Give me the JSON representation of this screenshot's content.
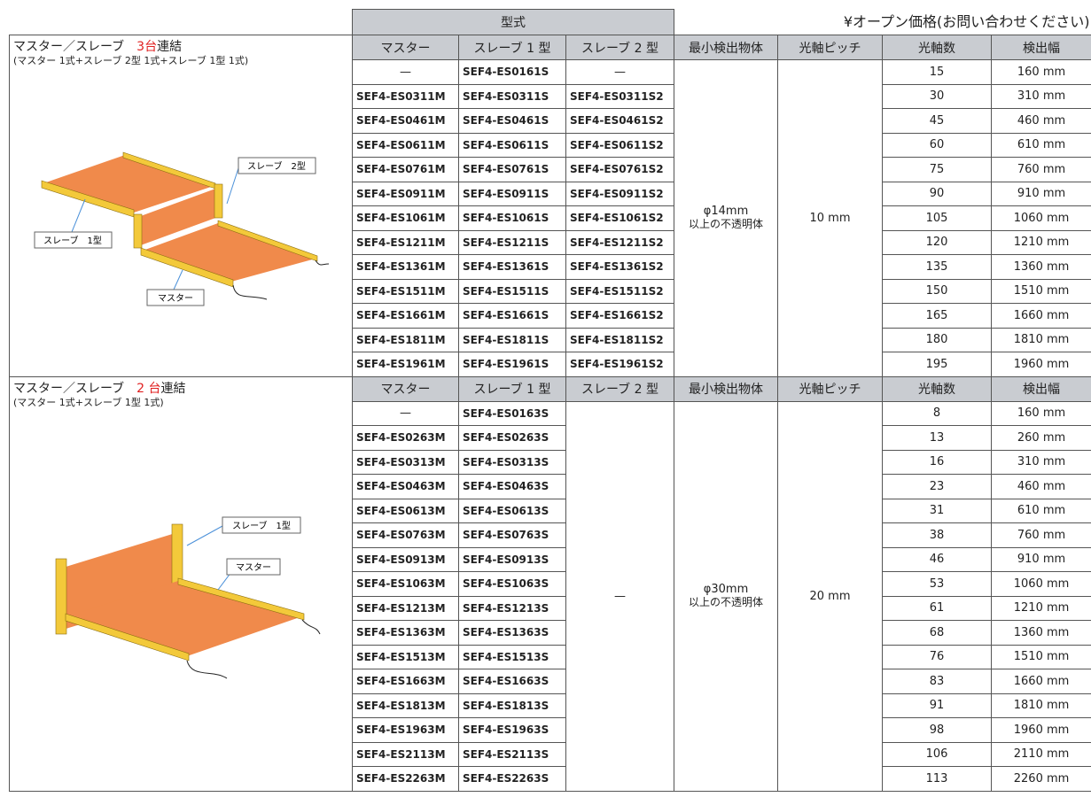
{
  "price_note": "¥オープン価格(お問い合わせください)",
  "model_header": "型式",
  "columns": [
    "マスター",
    "スレーブ 1 型",
    "スレーブ 2 型",
    "最小検出物体",
    "光軸ピッチ",
    "光軸数",
    "検出幅"
  ],
  "sections": [
    {
      "title_before": "マスター／スレーブ　",
      "title_count": "3台",
      "title_after": "連結",
      "subtitle": "(マスター 1式+スレーブ 2型 1式+スレーブ 1型 1式)",
      "labels": [
        "スレーブ　2型",
        "スレーブ　1型",
        "マスター"
      ],
      "min_object": [
        "φ14mm",
        "以上の不透明体"
      ],
      "pitch": "10 mm",
      "rows": [
        [
          "—",
          "SEF4-ES0161S",
          "—",
          15,
          "160 mm"
        ],
        [
          "SEF4-ES0311M",
          "SEF4-ES0311S",
          "SEF4-ES0311S2",
          30,
          "310 mm"
        ],
        [
          "SEF4-ES0461M",
          "SEF4-ES0461S",
          "SEF4-ES0461S2",
          45,
          "460 mm"
        ],
        [
          "SEF4-ES0611M",
          "SEF4-ES0611S",
          "SEF4-ES0611S2",
          60,
          "610 mm"
        ],
        [
          "SEF4-ES0761M",
          "SEF4-ES0761S",
          "SEF4-ES0761S2",
          75,
          "760 mm"
        ],
        [
          "SEF4-ES0911M",
          "SEF4-ES0911S",
          "SEF4-ES0911S2",
          90,
          "910 mm"
        ],
        [
          "SEF4-ES1061M",
          "SEF4-ES1061S",
          "SEF4-ES1061S2",
          105,
          "1060 mm"
        ],
        [
          "SEF4-ES1211M",
          "SEF4-ES1211S",
          "SEF4-ES1211S2",
          120,
          "1210 mm"
        ],
        [
          "SEF4-ES1361M",
          "SEF4-ES1361S",
          "SEF4-ES1361S2",
          135,
          "1360 mm"
        ],
        [
          "SEF4-ES1511M",
          "SEF4-ES1511S",
          "SEF4-ES1511S2",
          150,
          "1510 mm"
        ],
        [
          "SEF4-ES1661M",
          "SEF4-ES1661S",
          "SEF4-ES1661S2",
          165,
          "1660 mm"
        ],
        [
          "SEF4-ES1811M",
          "SEF4-ES1811S",
          "SEF4-ES1811S2",
          180,
          "1810 mm"
        ],
        [
          "SEF4-ES1961M",
          "SEF4-ES1961S",
          "SEF4-ES1961S2",
          195,
          "1960 mm"
        ]
      ]
    },
    {
      "title_before": "マスター／スレーブ　",
      "title_count": "2 台",
      "title_after": "連結",
      "subtitle": "(マスター 1式+スレーブ 1型 1式)",
      "labels": [
        "スレーブ　1型",
        "マスター"
      ],
      "slave2": "—",
      "min_object": [
        "φ30mm",
        "以上の不透明体"
      ],
      "pitch": "20 mm",
      "rows": [
        [
          "—",
          "SEF4-ES0163S",
          8,
          "160 mm"
        ],
        [
          "SEF4-ES0263M",
          "SEF4-ES0263S",
          13,
          "260 mm"
        ],
        [
          "SEF4-ES0313M",
          "SEF4-ES0313S",
          16,
          "310 mm"
        ],
        [
          "SEF4-ES0463M",
          "SEF4-ES0463S",
          23,
          "460 mm"
        ],
        [
          "SEF4-ES0613M",
          "SEF4-ES0613S",
          31,
          "610 mm"
        ],
        [
          "SEF4-ES0763M",
          "SEF4-ES0763S",
          38,
          "760 mm"
        ],
        [
          "SEF4-ES0913M",
          "SEF4-ES0913S",
          46,
          "910 mm"
        ],
        [
          "SEF4-ES1063M",
          "SEF4-ES1063S",
          53,
          "1060 mm"
        ],
        [
          "SEF4-ES1213M",
          "SEF4-ES1213S",
          61,
          "1210 mm"
        ],
        [
          "SEF4-ES1363M",
          "SEF4-ES1363S",
          68,
          "1360 mm"
        ],
        [
          "SEF4-ES1513M",
          "SEF4-ES1513S",
          76,
          "1510 mm"
        ],
        [
          "SEF4-ES1663M",
          "SEF4-ES1663S",
          83,
          "1660 mm"
        ],
        [
          "SEF4-ES1813M",
          "SEF4-ES1813S",
          91,
          "1810 mm"
        ],
        [
          "SEF4-ES1963M",
          "SEF4-ES1963S",
          98,
          "1960 mm"
        ],
        [
          "SEF4-ES2113M",
          "SEF4-ES2113S",
          106,
          "2110 mm"
        ],
        [
          "SEF4-ES2263M",
          "SEF4-ES2263S",
          113,
          "2260 mm"
        ]
      ]
    }
  ]
}
